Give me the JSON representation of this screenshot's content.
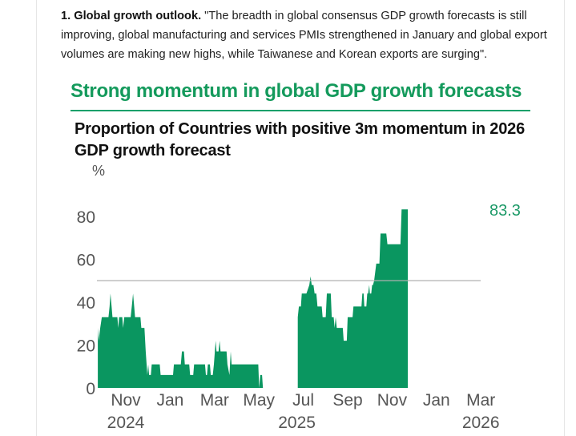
{
  "intro": {
    "lead": "1. Global growth outlook.",
    "quote": " \"The breadth in global consensus GDP growth forecasts is still improving, global manufacturing and services PMIs strengthened in January and global export volumes are making new highs, while Taiwanese and Korean exports are surging\"."
  },
  "colors": {
    "accent": "#149a5c",
    "area": "#0a9660",
    "threshold": "#b0b0b0"
  },
  "chart_data": {
    "type": "area",
    "headline": "Strong momentum in global GDP growth forecasts",
    "title": "Proportion of Countries with positive 3m momentum in 2026 GDP growth forecast",
    "ylabel": "%",
    "xlabel": "",
    "ylim": [
      0,
      90
    ],
    "yticks": [
      0,
      20,
      40,
      60,
      80
    ],
    "x_unit": "months since 2024-10-01",
    "xlim": [
      -0.3,
      17.6
    ],
    "xticks": [
      {
        "x": 1,
        "label": "Nov",
        "sub": "2024"
      },
      {
        "x": 3,
        "label": "Jan",
        "sub": ""
      },
      {
        "x": 5,
        "label": "Mar",
        "sub": ""
      },
      {
        "x": 7,
        "label": "May",
        "sub": ""
      },
      {
        "x": 9,
        "label": "Jul",
        "sub": "2025"
      },
      {
        "x": 11,
        "label": "Sep",
        "sub": ""
      },
      {
        "x": 13,
        "label": "Nov",
        "sub": ""
      },
      {
        "x": 15,
        "label": "Jan",
        "sub": ""
      },
      {
        "x": 17,
        "label": "Mar",
        "sub": "2026"
      }
    ],
    "threshold": 50,
    "end_label": "83.3",
    "grid": false,
    "legend": "none",
    "series": [
      {
        "name": "Proportion with positive 3m momentum",
        "segments": [
          [
            [
              -0.26,
              28
            ],
            [
              -0.22,
              22
            ],
            [
              -0.15,
              28
            ],
            [
              -0.08,
              33
            ],
            [
              0.0,
              33
            ],
            [
              0.22,
              33
            ],
            [
              0.27,
              38
            ],
            [
              0.31,
              44
            ],
            [
              0.36,
              38
            ],
            [
              0.4,
              33
            ],
            [
              0.62,
              33
            ],
            [
              0.66,
              28
            ],
            [
              0.7,
              33
            ],
            [
              0.84,
              33
            ],
            [
              0.88,
              28
            ],
            [
              0.93,
              33
            ],
            [
              1.0,
              33
            ],
            [
              1.22,
              33
            ],
            [
              1.27,
              38
            ],
            [
              1.33,
              44
            ],
            [
              1.38,
              38
            ],
            [
              1.42,
              33
            ],
            [
              1.66,
              33
            ],
            [
              1.7,
              28
            ],
            [
              1.84,
              28
            ],
            [
              1.9,
              17
            ],
            [
              1.97,
              6
            ],
            [
              2.01,
              11
            ],
            [
              2.05,
              6
            ],
            [
              2.13,
              6
            ],
            [
              2.17,
              11
            ],
            [
              2.53,
              11
            ],
            [
              2.57,
              6
            ],
            [
              3.13,
              6
            ],
            [
              3.17,
              11
            ],
            [
              3.48,
              11
            ],
            [
              3.53,
              17
            ],
            [
              3.62,
              17
            ],
            [
              3.66,
              11
            ],
            [
              3.86,
              11
            ],
            [
              3.9,
              6
            ],
            [
              4.04,
              6
            ],
            [
              4.08,
              11
            ],
            [
              4.57,
              11
            ],
            [
              4.61,
              6
            ],
            [
              4.66,
              6
            ],
            [
              4.7,
              11
            ],
            [
              4.79,
              11
            ],
            [
              4.83,
              6
            ],
            [
              4.92,
              6
            ],
            [
              4.97,
              11
            ],
            [
              5.05,
              22
            ],
            [
              5.09,
              17
            ],
            [
              5.18,
              17
            ],
            [
              5.23,
              22
            ],
            [
              5.27,
              17
            ],
            [
              5.54,
              17
            ],
            [
              5.58,
              11
            ],
            [
              5.67,
              6
            ],
            [
              5.73,
              17
            ],
            [
              5.77,
              11
            ],
            [
              6.97,
              11
            ],
            [
              7.01,
              0
            ],
            [
              7.06,
              6
            ],
            [
              7.14,
              6
            ],
            [
              7.18,
              0
            ]
          ],
          [
            [
              8.75,
              0
            ],
            [
              8.75,
              33
            ],
            [
              8.8,
              38
            ],
            [
              8.89,
              38
            ],
            [
              8.93,
              44
            ],
            [
              9.14,
              44
            ],
            [
              9.27,
              48
            ],
            [
              9.33,
              52
            ],
            [
              9.38,
              48
            ],
            [
              9.46,
              48
            ],
            [
              9.51,
              44
            ],
            [
              9.59,
              44
            ],
            [
              9.64,
              38
            ],
            [
              9.83,
              38
            ],
            [
              9.87,
              33
            ],
            [
              10.01,
              33
            ],
            [
              10.06,
              44
            ],
            [
              10.24,
              44
            ],
            [
              10.28,
              33
            ],
            [
              10.37,
              33
            ],
            [
              10.41,
              28
            ],
            [
              10.46,
              33
            ],
            [
              10.51,
              28
            ],
            [
              10.78,
              28
            ],
            [
              10.82,
              22
            ],
            [
              10.96,
              22
            ],
            [
              11.0,
              33
            ],
            [
              11.22,
              33
            ],
            [
              11.26,
              38
            ],
            [
              11.62,
              38
            ],
            [
              11.66,
              44
            ],
            [
              11.72,
              44
            ],
            [
              11.75,
              38
            ],
            [
              11.84,
              38
            ],
            [
              11.88,
              44
            ],
            [
              11.92,
              44
            ],
            [
              11.97,
              48
            ],
            [
              12.0,
              44
            ],
            [
              12.06,
              44
            ],
            [
              12.1,
              48
            ],
            [
              12.14,
              48
            ],
            [
              12.19,
              50
            ],
            [
              12.29,
              58
            ],
            [
              12.43,
              58
            ],
            [
              12.48,
              72
            ],
            [
              12.74,
              72
            ],
            [
              12.79,
              67
            ],
            [
              13.38,
              67
            ],
            [
              13.43,
              83.3
            ],
            [
              13.71,
              83.3
            ]
          ]
        ]
      }
    ]
  }
}
